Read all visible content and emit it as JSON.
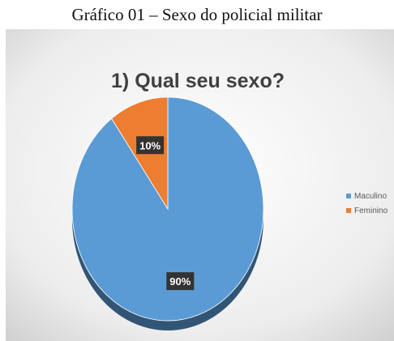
{
  "figure_caption": "Gráfico 01 – Sexo do policial militar",
  "chart_data": {
    "type": "pie",
    "title": "1) Qual seu sexo?",
    "categories": [
      "Maculino",
      "Feminino"
    ],
    "values": [
      90,
      10
    ],
    "data_labels": [
      "90%",
      "10%"
    ],
    "colors": [
      "#5b9bd5",
      "#ed7d31"
    ],
    "legend_position": "right",
    "style": "3d"
  }
}
